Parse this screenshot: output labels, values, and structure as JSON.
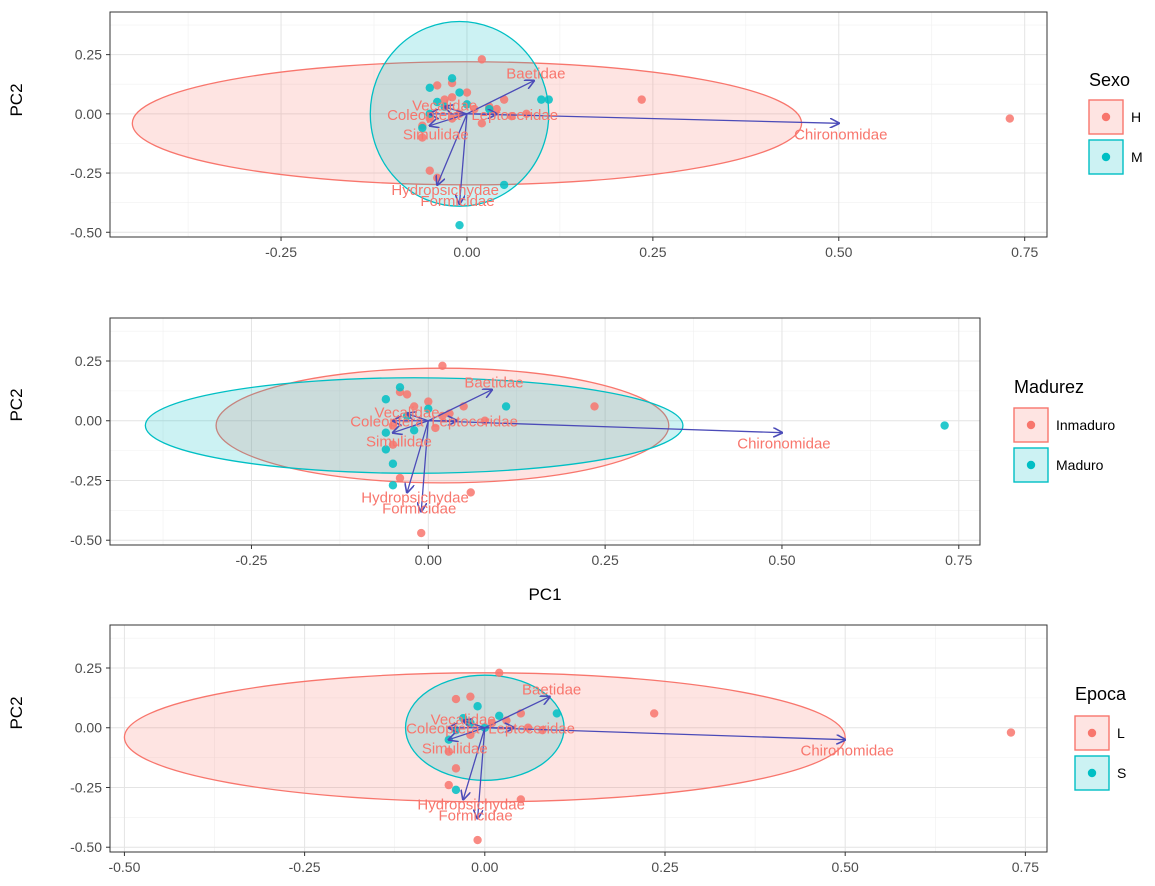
{
  "chart_data": [
    {
      "type": "scatter",
      "title": "",
      "xlabel": "",
      "ylabel": "PC2",
      "xlim": [
        -0.48,
        0.78
      ],
      "ylim": [
        -0.52,
        0.43
      ],
      "xticks": [
        "-0.25",
        "0.00",
        "0.25",
        "0.50",
        "0.75"
      ],
      "xtick_values": [
        -0.25,
        0,
        0.25,
        0.5,
        0.75
      ],
      "yticks": [
        "0.25",
        "0.00",
        "-0.25",
        "-0.50"
      ],
      "ytick_values": [
        0.25,
        0,
        -0.25,
        -0.5
      ],
      "grid": true,
      "legend": {
        "title": "Sexo",
        "position": "right",
        "entries": [
          {
            "label": "H",
            "color": "#F8766D"
          },
          {
            "label": "M",
            "color": "#00BFC4"
          }
        ]
      },
      "series": [
        {
          "name": "H",
          "color": "#F8766D",
          "points": [
            [
              0.73,
              -0.02
            ],
            [
              0.235,
              0.06
            ],
            [
              0.02,
              0.23
            ],
            [
              0.05,
              0.06
            ],
            [
              0.03,
              0.03
            ],
            [
              -0.02,
              0.13
            ],
            [
              -0.04,
              0.12
            ],
            [
              -0.03,
              0.06
            ],
            [
              0.0,
              0.09
            ],
            [
              -0.05,
              -0.02
            ],
            [
              -0.06,
              -0.05
            ],
            [
              -0.06,
              -0.1
            ],
            [
              -0.05,
              -0.24
            ],
            [
              -0.04,
              -0.27
            ],
            [
              0.01,
              0.02
            ],
            [
              -0.02,
              -0.02
            ],
            [
              0.06,
              -0.01
            ],
            [
              0.08,
              0.0
            ],
            [
              -0.01,
              0.0
            ],
            [
              0.02,
              -0.04
            ],
            [
              0.04,
              0.02
            ],
            [
              -0.02,
              0.07
            ]
          ],
          "ellipse": {
            "cx": 0.0,
            "cy": -0.04,
            "rx": 0.45,
            "ry": 0.26
          }
        },
        {
          "name": "M",
          "color": "#00BFC4",
          "points": [
            [
              -0.01,
              -0.47
            ],
            [
              0.05,
              -0.3
            ],
            [
              0.1,
              0.06
            ],
            [
              0.11,
              0.06
            ],
            [
              -0.01,
              0.09
            ],
            [
              -0.05,
              0.11
            ],
            [
              -0.02,
              0.15
            ],
            [
              -0.06,
              -0.06
            ],
            [
              -0.05,
              0.0
            ],
            [
              0.03,
              0.02
            ],
            [
              -0.04,
              0.05
            ],
            [
              0.0,
              0.04
            ],
            [
              -0.03,
              0.03
            ]
          ],
          "ellipse": {
            "cx": -0.01,
            "cy": 0.0,
            "rx": 0.12,
            "ry": 0.39
          }
        }
      ],
      "loadings": [
        {
          "label": "Chironomidae",
          "x": 0.5,
          "y": -0.04
        },
        {
          "label": "Baetidae",
          "x": 0.09,
          "y": 0.14
        },
        {
          "label": "Hydropsichydae",
          "x": -0.04,
          "y": -0.3
        },
        {
          "label": "Formicidae",
          "x": -0.01,
          "y": -0.38
        },
        {
          "label": "Simulidae",
          "x": -0.05,
          "y": -0.05
        },
        {
          "label": "Coleoptera",
          "x": -0.05,
          "y": 0.0
        },
        {
          "label": "Vecalidae",
          "x": -0.03,
          "y": 0.03
        },
        {
          "label": "Leptoceridae",
          "x": 0.04,
          "y": 0.0
        }
      ],
      "loading_color": "#4B4BB8",
      "loading_label_color": "#F8766D"
    },
    {
      "type": "scatter",
      "title": "",
      "xlabel": "PC1",
      "ylabel": "PC2",
      "xlim": [
        -0.45,
        0.78
      ],
      "ylim": [
        -0.52,
        0.43
      ],
      "xticks": [
        "-0.25",
        "0.00",
        "0.25",
        "0.50",
        "0.75"
      ],
      "xtick_values": [
        -0.25,
        0,
        0.25,
        0.5,
        0.75
      ],
      "yticks": [
        "0.25",
        "0.00",
        "-0.25",
        "-0.50"
      ],
      "ytick_values": [
        0.25,
        0,
        -0.25,
        -0.5
      ],
      "grid": true,
      "legend": {
        "title": "Madurez",
        "position": "right",
        "entries": [
          {
            "label": "Inmaduro",
            "color": "#F8766D"
          },
          {
            "label": "Maduro",
            "color": "#00BFC4"
          }
        ]
      },
      "series": [
        {
          "name": "Inmaduro",
          "color": "#F8766D",
          "points": [
            [
              -0.01,
              -0.47
            ],
            [
              0.235,
              0.06
            ],
            [
              0.02,
              0.23
            ],
            [
              0.05,
              0.06
            ],
            [
              0.06,
              -0.3
            ],
            [
              0.03,
              0.03
            ],
            [
              -0.03,
              0.11
            ],
            [
              -0.04,
              0.12
            ],
            [
              -0.02,
              0.06
            ],
            [
              0.0,
              0.08
            ],
            [
              -0.05,
              -0.02
            ],
            [
              -0.05,
              -0.1
            ],
            [
              -0.04,
              -0.24
            ],
            [
              0.02,
              0.02
            ],
            [
              0.08,
              0.0
            ],
            [
              0.01,
              -0.03
            ]
          ],
          "ellipse": {
            "cx": 0.02,
            "cy": -0.02,
            "rx": 0.32,
            "ry": 0.24
          }
        },
        {
          "name": "Maduro",
          "color": "#00BFC4",
          "points": [
            [
              0.73,
              -0.02
            ],
            [
              0.11,
              0.06
            ],
            [
              -0.04,
              0.14
            ],
            [
              -0.06,
              0.09
            ],
            [
              -0.06,
              -0.05
            ],
            [
              -0.06,
              -0.12
            ],
            [
              -0.05,
              -0.18
            ],
            [
              -0.05,
              -0.27
            ],
            [
              -0.03,
              0.02
            ],
            [
              0.0,
              0.05
            ],
            [
              -0.02,
              -0.04
            ]
          ],
          "ellipse": {
            "cx": -0.02,
            "cy": -0.02,
            "rx": 0.38,
            "ry": 0.2
          }
        }
      ],
      "loadings": [
        {
          "label": "Chironomidae",
          "x": 0.5,
          "y": -0.05
        },
        {
          "label": "Baetidae",
          "x": 0.09,
          "y": 0.13
        },
        {
          "label": "Hydropsichydae",
          "x": -0.03,
          "y": -0.3
        },
        {
          "label": "Formicidae",
          "x": -0.01,
          "y": -0.38
        },
        {
          "label": "Simulidae",
          "x": -0.05,
          "y": -0.05
        },
        {
          "label": "Coleoptera",
          "x": -0.05,
          "y": 0.0
        },
        {
          "label": "Vecalidae",
          "x": -0.03,
          "y": 0.03
        },
        {
          "label": "Leptoceridae",
          "x": 0.04,
          "y": 0.0
        }
      ],
      "loading_color": "#4B4BB8",
      "loading_label_color": "#F8766D"
    },
    {
      "type": "scatter",
      "title": "",
      "xlabel": "",
      "ylabel": "PC2",
      "xlim": [
        -0.52,
        0.78
      ],
      "ylim": [
        -0.52,
        0.43
      ],
      "xticks": [
        "-0.50",
        "-0.25",
        "0.00",
        "0.25",
        "0.50",
        "0.75"
      ],
      "xtick_values": [
        -0.5,
        -0.25,
        0,
        0.25,
        0.5,
        0.75
      ],
      "yticks": [
        "0.25",
        "0.00",
        "-0.25",
        "-0.50"
      ],
      "ytick_values": [
        0.25,
        0,
        -0.25,
        -0.5
      ],
      "grid": true,
      "legend": {
        "title": "Epoca",
        "position": "right",
        "entries": [
          {
            "label": "L",
            "color": "#F8766D"
          },
          {
            "label": "S",
            "color": "#00BFC4"
          }
        ]
      },
      "series": [
        {
          "name": "L",
          "color": "#F8766D",
          "points": [
            [
              0.73,
              -0.02
            ],
            [
              0.235,
              0.06
            ],
            [
              -0.01,
              -0.47
            ],
            [
              0.05,
              -0.3
            ],
            [
              0.02,
              0.23
            ],
            [
              0.05,
              0.06
            ],
            [
              0.03,
              0.03
            ],
            [
              -0.02,
              0.13
            ],
            [
              -0.04,
              0.12
            ],
            [
              -0.05,
              -0.24
            ],
            [
              -0.04,
              -0.17
            ],
            [
              -0.05,
              -0.1
            ],
            [
              0.06,
              0.0
            ],
            [
              0.08,
              -0.01
            ],
            [
              0.01,
              0.02
            ],
            [
              -0.02,
              -0.03
            ]
          ],
          "ellipse": {
            "cx": 0.0,
            "cy": -0.04,
            "rx": 0.5,
            "ry": 0.27
          }
        },
        {
          "name": "S",
          "color": "#00BFC4",
          "points": [
            [
              0.1,
              0.06
            ],
            [
              -0.01,
              0.09
            ],
            [
              -0.03,
              0.04
            ],
            [
              -0.02,
              0.02
            ],
            [
              0.0,
              0.0
            ],
            [
              -0.04,
              -0.01
            ],
            [
              -0.05,
              -0.05
            ],
            [
              -0.04,
              -0.26
            ],
            [
              0.02,
              0.05
            ]
          ],
          "ellipse": {
            "cx": 0.0,
            "cy": 0.0,
            "rx": 0.11,
            "ry": 0.22
          }
        }
      ],
      "loadings": [
        {
          "label": "Chironomidae",
          "x": 0.5,
          "y": -0.05
        },
        {
          "label": "Baetidae",
          "x": 0.09,
          "y": 0.13
        },
        {
          "label": "Hydropsichydae",
          "x": -0.03,
          "y": -0.3
        },
        {
          "label": "Formicidae",
          "x": -0.01,
          "y": -0.38
        },
        {
          "label": "Simulidae",
          "x": -0.05,
          "y": -0.05
        },
        {
          "label": "Coleoptera",
          "x": -0.05,
          "y": 0.0
        },
        {
          "label": "Vecalidae",
          "x": -0.03,
          "y": 0.03
        },
        {
          "label": "Leptoceridae",
          "x": 0.04,
          "y": 0.0
        }
      ],
      "loading_color": "#4B4BB8",
      "loading_label_color": "#F8766D"
    }
  ]
}
